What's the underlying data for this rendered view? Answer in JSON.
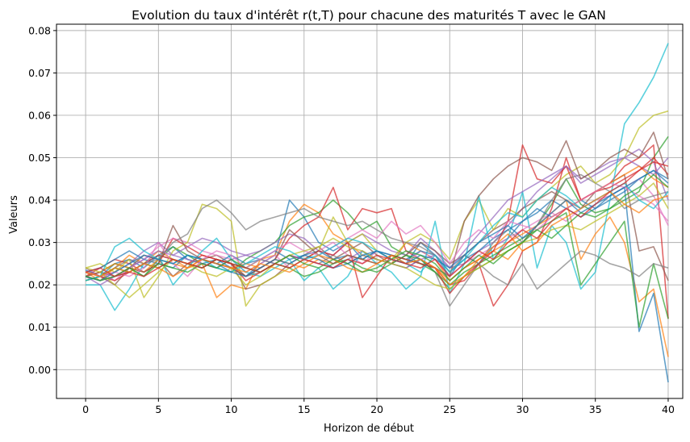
{
  "chart_data": {
    "type": "line",
    "title": "Evolution du taux d'intérêt r(t,T) pour chacune des maturités T avec le GAN",
    "xlabel": "Horizon de début",
    "ylabel": "Valeurs",
    "xlim": [
      -2,
      41
    ],
    "ylim": [
      -0.0068,
      0.0815
    ],
    "x_ticks": [
      "0",
      "5",
      "10",
      "15",
      "20",
      "25",
      "30",
      "35",
      "40"
    ],
    "y_ticks": [
      "0.00",
      "0.01",
      "0.02",
      "0.03",
      "0.04",
      "0.05",
      "0.06",
      "0.07",
      "0.08"
    ],
    "grid": true,
    "legend": "none",
    "x": [
      0,
      1,
      2,
      3,
      4,
      5,
      6,
      7,
      8,
      9,
      10,
      11,
      12,
      13,
      14,
      15,
      16,
      17,
      18,
      19,
      20,
      21,
      22,
      23,
      24,
      25,
      26,
      27,
      28,
      29,
      30,
      31,
      32,
      33,
      34,
      35,
      36,
      37,
      38,
      39,
      40
    ],
    "series": [
      {
        "color": "#1f77b4",
        "values": [
          0.0235,
          0.022,
          0.025,
          0.026,
          0.024,
          0.027,
          0.029,
          0.026,
          0.025,
          0.026,
          0.024,
          0.022,
          0.025,
          0.027,
          0.04,
          0.036,
          0.03,
          0.028,
          0.03,
          0.026,
          0.028,
          0.027,
          0.025,
          0.03,
          0.027,
          0.022,
          0.027,
          0.025,
          0.029,
          0.031,
          0.035,
          0.037,
          0.04,
          0.038,
          0.036,
          0.038,
          0.04,
          0.042,
          0.045,
          0.047,
          0.045
        ]
      },
      {
        "color": "#ff7f0e",
        "values": [
          0.023,
          0.021,
          0.024,
          0.027,
          0.025,
          0.028,
          0.026,
          0.024,
          0.025,
          0.017,
          0.02,
          0.019,
          0.026,
          0.027,
          0.035,
          0.039,
          0.037,
          0.032,
          0.03,
          0.027,
          0.026,
          0.025,
          0.03,
          0.028,
          0.026,
          0.021,
          0.024,
          0.026,
          0.028,
          0.026,
          0.03,
          0.034,
          0.037,
          0.04,
          0.026,
          0.032,
          0.036,
          0.03,
          0.016,
          0.019,
          0.003
        ]
      },
      {
        "color": "#2ca02c",
        "values": [
          0.022,
          0.023,
          0.025,
          0.024,
          0.022,
          0.026,
          0.029,
          0.027,
          0.025,
          0.024,
          0.023,
          0.026,
          0.028,
          0.03,
          0.034,
          0.036,
          0.037,
          0.04,
          0.037,
          0.033,
          0.035,
          0.029,
          0.027,
          0.025,
          0.023,
          0.019,
          0.022,
          0.024,
          0.026,
          0.028,
          0.03,
          0.034,
          0.039,
          0.045,
          0.039,
          0.037,
          0.038,
          0.04,
          0.042,
          0.05,
          0.055
        ]
      },
      {
        "color": "#d62728",
        "values": [
          0.022,
          0.024,
          0.026,
          0.025,
          0.023,
          0.025,
          0.031,
          0.029,
          0.027,
          0.026,
          0.025,
          0.022,
          0.024,
          0.026,
          0.031,
          0.034,
          0.036,
          0.043,
          0.033,
          0.038,
          0.037,
          0.038,
          0.028,
          0.026,
          0.024,
          0.02,
          0.021,
          0.025,
          0.015,
          0.02,
          0.028,
          0.03,
          0.038,
          0.05,
          0.04,
          0.042,
          0.044,
          0.048,
          0.05,
          0.053,
          0.012
        ]
      },
      {
        "color": "#9467bd",
        "values": [
          0.024,
          0.022,
          0.023,
          0.025,
          0.028,
          0.03,
          0.027,
          0.029,
          0.031,
          0.03,
          0.028,
          0.027,
          0.028,
          0.03,
          0.032,
          0.031,
          0.028,
          0.027,
          0.03,
          0.032,
          0.03,
          0.028,
          0.027,
          0.031,
          0.028,
          0.024,
          0.025,
          0.028,
          0.03,
          0.034,
          0.038,
          0.042,
          0.045,
          0.048,
          0.044,
          0.046,
          0.048,
          0.05,
          0.048,
          0.046,
          0.05
        ]
      },
      {
        "color": "#8c564b",
        "values": [
          0.021,
          0.022,
          0.02,
          0.024,
          0.027,
          0.026,
          0.022,
          0.025,
          0.026,
          0.027,
          0.025,
          0.019,
          0.02,
          0.022,
          0.025,
          0.027,
          0.029,
          0.026,
          0.028,
          0.03,
          0.027,
          0.025,
          0.027,
          0.03,
          0.028,
          0.025,
          0.027,
          0.03,
          0.033,
          0.035,
          0.038,
          0.04,
          0.042,
          0.04,
          0.038,
          0.042,
          0.044,
          0.046,
          0.028,
          0.029,
          0.021
        ]
      },
      {
        "color": "#e377c2",
        "values": [
          0.022,
          0.023,
          0.021,
          0.024,
          0.026,
          0.029,
          0.031,
          0.03,
          0.028,
          0.027,
          0.026,
          0.023,
          0.025,
          0.027,
          0.024,
          0.026,
          0.028,
          0.03,
          0.027,
          0.025,
          0.028,
          0.026,
          0.025,
          0.028,
          0.026,
          0.022,
          0.025,
          0.027,
          0.029,
          0.031,
          0.033,
          0.035,
          0.037,
          0.035,
          0.038,
          0.04,
          0.041,
          0.043,
          0.045,
          0.041,
          0.034
        ]
      },
      {
        "color": "#7f7f7f",
        "values": [
          0.023,
          0.022,
          0.024,
          0.026,
          0.025,
          0.027,
          0.026,
          0.025,
          0.024,
          0.026,
          0.025,
          0.022,
          0.023,
          0.025,
          0.027,
          0.026,
          0.025,
          0.027,
          0.025,
          0.027,
          0.026,
          0.025,
          0.024,
          0.026,
          0.023,
          0.015,
          0.02,
          0.025,
          0.03,
          0.033,
          0.03,
          0.034,
          0.04,
          0.045,
          0.046,
          0.044,
          0.042,
          0.038,
          0.04,
          0.041,
          0.042
        ]
      },
      {
        "color": "#bcbd22",
        "values": [
          0.024,
          0.025,
          0.023,
          0.026,
          0.017,
          0.022,
          0.028,
          0.03,
          0.039,
          0.038,
          0.035,
          0.015,
          0.02,
          0.022,
          0.024,
          0.026,
          0.028,
          0.036,
          0.03,
          0.032,
          0.028,
          0.026,
          0.03,
          0.032,
          0.03,
          0.026,
          0.035,
          0.04,
          0.033,
          0.038,
          0.036,
          0.04,
          0.043,
          0.046,
          0.048,
          0.044,
          0.046,
          0.05,
          0.057,
          0.06,
          0.061
        ]
      },
      {
        "color": "#17becf",
        "values": [
          0.02,
          0.02,
          0.014,
          0.019,
          0.025,
          0.027,
          0.02,
          0.024,
          0.028,
          0.031,
          0.026,
          0.023,
          0.022,
          0.024,
          0.026,
          0.021,
          0.024,
          0.019,
          0.022,
          0.028,
          0.025,
          0.023,
          0.019,
          0.022,
          0.035,
          0.018,
          0.025,
          0.041,
          0.026,
          0.031,
          0.042,
          0.024,
          0.034,
          0.03,
          0.019,
          0.023,
          0.04,
          0.058,
          0.063,
          0.069,
          0.077
        ]
      },
      {
        "color": "#1f77b4",
        "values": [
          0.023,
          0.024,
          0.026,
          0.028,
          0.026,
          0.025,
          0.024,
          0.027,
          0.026,
          0.025,
          0.027,
          0.025,
          0.026,
          0.028,
          0.026,
          0.027,
          0.028,
          0.026,
          0.027,
          0.026,
          0.028,
          0.027,
          0.026,
          0.028,
          0.027,
          0.023,
          0.026,
          0.028,
          0.031,
          0.033,
          0.035,
          0.038,
          0.036,
          0.038,
          0.04,
          0.038,
          0.041,
          0.043,
          0.009,
          0.018,
          -0.003
        ]
      },
      {
        "color": "#ff7f0e",
        "values": [
          0.022,
          0.023,
          0.025,
          0.024,
          0.023,
          0.026,
          0.025,
          0.024,
          0.026,
          0.025,
          0.024,
          0.025,
          0.024,
          0.026,
          0.025,
          0.024,
          0.026,
          0.025,
          0.027,
          0.026,
          0.025,
          0.027,
          0.026,
          0.025,
          0.024,
          0.021,
          0.024,
          0.026,
          0.028,
          0.03,
          0.032,
          0.034,
          0.036,
          0.038,
          0.04,
          0.042,
          0.044,
          0.046,
          0.048,
          0.045,
          0.043
        ]
      },
      {
        "color": "#2ca02c",
        "values": [
          0.021,
          0.022,
          0.024,
          0.023,
          0.025,
          0.024,
          0.026,
          0.025,
          0.024,
          0.026,
          0.025,
          0.024,
          0.026,
          0.025,
          0.024,
          0.022,
          0.023,
          0.025,
          0.026,
          0.024,
          0.023,
          0.025,
          0.027,
          0.026,
          0.023,
          0.02,
          0.023,
          0.025,
          0.027,
          0.029,
          0.031,
          0.033,
          0.035,
          0.037,
          0.02,
          0.025,
          0.03,
          0.035,
          0.01,
          0.025,
          0.012
        ]
      },
      {
        "color": "#d62728",
        "values": [
          0.023,
          0.022,
          0.021,
          0.023,
          0.025,
          0.027,
          0.026,
          0.025,
          0.027,
          0.026,
          0.025,
          0.021,
          0.023,
          0.025,
          0.027,
          0.026,
          0.028,
          0.027,
          0.03,
          0.017,
          0.022,
          0.027,
          0.026,
          0.025,
          0.024,
          0.018,
          0.022,
          0.025,
          0.028,
          0.035,
          0.053,
          0.045,
          0.044,
          0.048,
          0.04,
          0.042,
          0.043,
          0.045,
          0.047,
          0.05,
          0.046
        ]
      },
      {
        "color": "#9467bd",
        "values": [
          0.022,
          0.02,
          0.022,
          0.024,
          0.026,
          0.028,
          0.027,
          0.026,
          0.025,
          0.024,
          0.026,
          0.027,
          0.026,
          0.025,
          0.027,
          0.026,
          0.025,
          0.024,
          0.026,
          0.028,
          0.026,
          0.025,
          0.024,
          0.026,
          0.027,
          0.024,
          0.028,
          0.032,
          0.036,
          0.04,
          0.042,
          0.044,
          0.046,
          0.048,
          0.045,
          0.047,
          0.049,
          0.05,
          0.052,
          0.049,
          0.04
        ]
      },
      {
        "color": "#8c564b",
        "values": [
          0.022,
          0.023,
          0.022,
          0.024,
          0.023,
          0.025,
          0.034,
          0.028,
          0.026,
          0.025,
          0.024,
          0.022,
          0.024,
          0.026,
          0.033,
          0.03,
          0.027,
          0.025,
          0.027,
          0.026,
          0.025,
          0.027,
          0.026,
          0.025,
          0.024,
          0.022,
          0.035,
          0.041,
          0.045,
          0.048,
          0.05,
          0.049,
          0.047,
          0.054,
          0.045,
          0.047,
          0.05,
          0.052,
          0.05,
          0.056,
          0.045
        ]
      },
      {
        "color": "#e377c2",
        "values": [
          0.023,
          0.022,
          0.023,
          0.022,
          0.024,
          0.03,
          0.025,
          0.022,
          0.026,
          0.028,
          0.027,
          0.024,
          0.026,
          0.028,
          0.03,
          0.028,
          0.027,
          0.029,
          0.031,
          0.033,
          0.031,
          0.035,
          0.032,
          0.034,
          0.03,
          0.025,
          0.03,
          0.033,
          0.031,
          0.035,
          0.034,
          0.033,
          0.036,
          0.038,
          0.04,
          0.042,
          0.044,
          0.043,
          0.041,
          0.039,
          0.035
        ]
      },
      {
        "color": "#7f7f7f",
        "values": [
          0.022,
          0.021,
          0.022,
          0.023,
          0.025,
          0.026,
          0.03,
          0.032,
          0.038,
          0.04,
          0.037,
          0.033,
          0.035,
          0.036,
          0.037,
          0.038,
          0.036,
          0.035,
          0.034,
          0.035,
          0.033,
          0.031,
          0.03,
          0.029,
          0.027,
          0.023,
          0.027,
          0.025,
          0.022,
          0.02,
          0.025,
          0.019,
          0.022,
          0.025,
          0.028,
          0.027,
          0.025,
          0.024,
          0.022,
          0.025,
          0.024
        ]
      },
      {
        "color": "#bcbd22",
        "values": [
          0.024,
          0.023,
          0.02,
          0.017,
          0.02,
          0.023,
          0.026,
          0.025,
          0.023,
          0.022,
          0.024,
          0.02,
          0.022,
          0.025,
          0.027,
          0.028,
          0.029,
          0.031,
          0.029,
          0.028,
          0.026,
          0.025,
          0.024,
          0.022,
          0.02,
          0.019,
          0.022,
          0.024,
          0.026,
          0.028,
          0.03,
          0.031,
          0.033,
          0.034,
          0.033,
          0.035,
          0.037,
          0.039,
          0.041,
          0.044,
          0.038
        ]
      },
      {
        "color": "#17becf",
        "values": [
          0.021,
          0.022,
          0.029,
          0.031,
          0.028,
          0.026,
          0.025,
          0.027,
          0.026,
          0.024,
          0.023,
          0.025,
          0.027,
          0.029,
          0.028,
          0.026,
          0.027,
          0.029,
          0.031,
          0.03,
          0.028,
          0.026,
          0.025,
          0.023,
          0.027,
          0.023,
          0.026,
          0.03,
          0.034,
          0.037,
          0.036,
          0.04,
          0.043,
          0.041,
          0.038,
          0.04,
          0.042,
          0.044,
          0.04,
          0.038,
          0.042
        ]
      },
      {
        "color": "#1f77b4",
        "values": [
          0.022,
          0.021,
          0.023,
          0.025,
          0.027,
          0.026,
          0.025,
          0.027,
          0.026,
          0.025,
          0.023,
          0.022,
          0.024,
          0.026,
          0.025,
          0.027,
          0.026,
          0.024,
          0.025,
          0.027,
          0.028,
          0.026,
          0.025,
          0.027,
          0.026,
          0.024,
          0.027,
          0.03,
          0.032,
          0.034,
          0.031,
          0.034,
          0.037,
          0.04,
          0.037,
          0.039,
          0.041,
          0.043,
          0.045,
          0.047,
          0.044
        ]
      },
      {
        "color": "#ff7f0e",
        "values": [
          0.023,
          0.022,
          0.024,
          0.023,
          0.025,
          0.024,
          0.022,
          0.024,
          0.026,
          0.025,
          0.024,
          0.023,
          0.025,
          0.024,
          0.023,
          0.025,
          0.027,
          0.026,
          0.024,
          0.023,
          0.025,
          0.027,
          0.025,
          0.026,
          0.024,
          0.02,
          0.022,
          0.026,
          0.029,
          0.032,
          0.028,
          0.03,
          0.034,
          0.036,
          0.038,
          0.04,
          0.042,
          0.039,
          0.037,
          0.04,
          0.041
        ]
      },
      {
        "color": "#2ca02c",
        "values": [
          0.022,
          0.021,
          0.022,
          0.024,
          0.022,
          0.025,
          0.024,
          0.023,
          0.025,
          0.024,
          0.026,
          0.024,
          0.023,
          0.025,
          0.027,
          0.025,
          0.024,
          0.026,
          0.025,
          0.023,
          0.024,
          0.026,
          0.028,
          0.027,
          0.025,
          0.021,
          0.024,
          0.027,
          0.025,
          0.028,
          0.03,
          0.033,
          0.031,
          0.034,
          0.037,
          0.036,
          0.038,
          0.041,
          0.043,
          0.046,
          0.043
        ]
      },
      {
        "color": "#d62728",
        "values": [
          0.023,
          0.024,
          0.022,
          0.023,
          0.022,
          0.024,
          0.026,
          0.025,
          0.024,
          0.026,
          0.025,
          0.024,
          0.023,
          0.025,
          0.024,
          0.026,
          0.025,
          0.024,
          0.026,
          0.025,
          0.027,
          0.026,
          0.025,
          0.024,
          0.026,
          0.022,
          0.025,
          0.028,
          0.026,
          0.03,
          0.033,
          0.031,
          0.035,
          0.038,
          0.036,
          0.039,
          0.042,
          0.044,
          0.047,
          0.049,
          0.048
        ]
      }
    ]
  }
}
